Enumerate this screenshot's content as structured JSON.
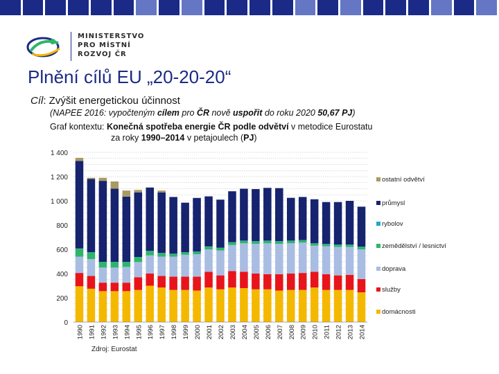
{
  "header": {
    "ministry_lines": [
      "MINISTERSTVO",
      "PRO MÍSTNÍ",
      "ROZVOJ ČR"
    ],
    "title": "Plnění cílů EU „20-20-20“",
    "goal_label": "Cíl",
    "goal_text": ": Zvýšit energetickou účinnost",
    "subtitle_1a": "(NAPEE 2016: vypočteným ",
    "subtitle_1b": "cílem",
    "subtitle_1c": " pro ",
    "subtitle_1d": "ČR",
    "subtitle_1e": " nově ",
    "subtitle_1f": "uspořit",
    "subtitle_1g": " do roku 2020 ",
    "subtitle_1h": "50,67 PJ",
    "subtitle_1i": ")",
    "context_a": "Graf kontextu: ",
    "context_b": "Konečná spotřeba energie ČR podle odvětví",
    "context_c": " v metodice Eurostatu",
    "context_d": "za roky ",
    "context_e": "1990–2014",
    "context_f": " v petajoulech (",
    "context_g": "PJ",
    "context_h": ")"
  },
  "source": "Zdroj: Eurostat",
  "colors": {
    "domacnosti": "#f5b800",
    "sluzby": "#e8141c",
    "doprava": "#a9bde3",
    "zemedelstvi": "#2fb56a",
    "rybolov": "#1fa9c9",
    "prumysl": "#16236e",
    "ostatni": "#a89a64"
  },
  "chart_data": {
    "type": "bar",
    "stacked": true,
    "title": "Konečná spotřeba energie ČR podle odvětví",
    "xlabel": "",
    "ylabel": "PJ",
    "ylim": [
      0,
      1400
    ],
    "yticks": [
      0,
      200,
      400,
      600,
      800,
      1000,
      1200,
      1400
    ],
    "ytick_labels": [
      "0",
      "200",
      "400",
      "600",
      "800",
      "1 000",
      "1 200",
      "1 400"
    ],
    "categories": [
      "1990",
      "1991",
      "1992",
      "1993",
      "1994",
      "1995",
      "1996",
      "1997",
      "1998",
      "1999",
      "2000",
      "2001",
      "2002",
      "2003",
      "2004",
      "2005",
      "2006",
      "2007",
      "2008",
      "2009",
      "2010",
      "2011",
      "2012",
      "2013",
      "2014"
    ],
    "series": [
      {
        "name": "domácnosti",
        "key": "domacnosti",
        "values": [
          295,
          275,
          255,
          255,
          255,
          265,
          300,
          285,
          265,
          265,
          260,
          285,
          270,
          285,
          280,
          270,
          270,
          260,
          265,
          265,
          285,
          265,
          265,
          265,
          245
        ]
      },
      {
        "name": "služby",
        "key": "sluzby",
        "values": [
          110,
          105,
          70,
          70,
          70,
          105,
          100,
          95,
          110,
          110,
          115,
          130,
          115,
          135,
          135,
          130,
          125,
          135,
          135,
          140,
          130,
          130,
          120,
          125,
          110
        ]
      },
      {
        "name": "doprava",
        "key": "doprava",
        "values": [
          135,
          140,
          125,
          125,
          130,
          125,
          150,
          160,
          165,
          180,
          185,
          185,
          205,
          215,
          235,
          245,
          255,
          250,
          250,
          250,
          215,
          230,
          235,
          230,
          245
        ]
      },
      {
        "name": "zemědělství / lesnictví",
        "key": "zemedelstvi",
        "values": [
          65,
          55,
          45,
          45,
          40,
          40,
          35,
          28,
          22,
          20,
          20,
          22,
          22,
          22,
          20,
          20,
          20,
          20,
          20,
          20,
          18,
          18,
          18,
          18,
          20
        ]
      },
      {
        "name": "rybolov",
        "key": "rybolov",
        "values": [
          2,
          2,
          2,
          2,
          2,
          2,
          2,
          2,
          2,
          2,
          2,
          2,
          2,
          2,
          2,
          2,
          2,
          2,
          2,
          2,
          2,
          2,
          2,
          2,
          2
        ]
      },
      {
        "name": "průmysl",
        "key": "prumysl",
        "values": [
          722,
          603,
          668,
          603,
          538,
          533,
          523,
          500,
          468,
          408,
          442,
          413,
          396,
          420,
          428,
          430,
          435,
          438,
          353,
          355,
          363,
          345,
          350,
          360,
          330
        ]
      },
      {
        "name": "ostatní odvětví",
        "key": "ostatni",
        "values": [
          26,
          10,
          25,
          60,
          50,
          20,
          0,
          15,
          0,
          0,
          0,
          0,
          0,
          0,
          0,
          0,
          0,
          0,
          0,
          0,
          0,
          0,
          0,
          0,
          0
        ]
      }
    ],
    "legend_order": [
      "ostatni",
      "prumysl",
      "rybolov",
      "zemedelstvi",
      "doprava",
      "sluzby",
      "domacnosti"
    ],
    "legend_position": "right",
    "grid": true
  }
}
